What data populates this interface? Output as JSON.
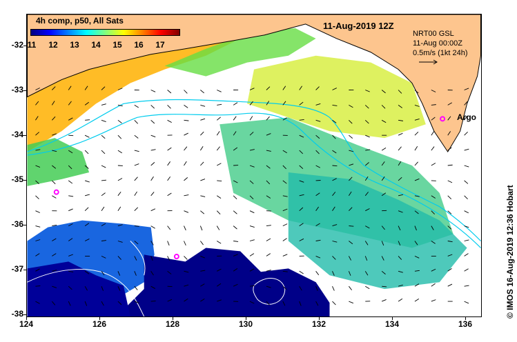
{
  "legend": {
    "title": "4h comp, p50, All Sats",
    "colorbar_ticks": [
      "11",
      "12",
      "13",
      "14",
      "15",
      "16",
      "17"
    ],
    "colors": [
      "#000080",
      "#0000ff",
      "#0080ff",
      "#00ffff",
      "#80ff80",
      "#ffff00",
      "#ff8000",
      "#ff0000",
      "#800000"
    ]
  },
  "header": {
    "date_title": "11-Aug-2019 12Z",
    "info_line1": "NRT00 GSL",
    "info_line2": "11-Aug 00:00Z",
    "info_line3": "0.5m/s (1kt 24h)"
  },
  "axes": {
    "lat_labels": [
      "-32",
      "-33",
      "-34",
      "-35",
      "-36",
      "-37",
      "-38"
    ],
    "lon_labels": [
      "124",
      "126",
      "128",
      "130",
      "132",
      "134",
      "136"
    ]
  },
  "annotations": {
    "argo_label": "Argo",
    "argo_floats": [
      {
        "lon": 135.4,
        "lat": -33.65
      },
      {
        "lon": 124.8,
        "lat": -35.3
      },
      {
        "lon": 128.1,
        "lat": -36.75
      }
    ]
  },
  "colors": {
    "land": "#fdc58e",
    "cold": "#000080",
    "warm": "#ffa500",
    "current": "#00ccee",
    "argo": "#ff00ff"
  },
  "footer": {
    "credit": "© IMOS 16-Aug-2019 12:36 Hobart"
  }
}
